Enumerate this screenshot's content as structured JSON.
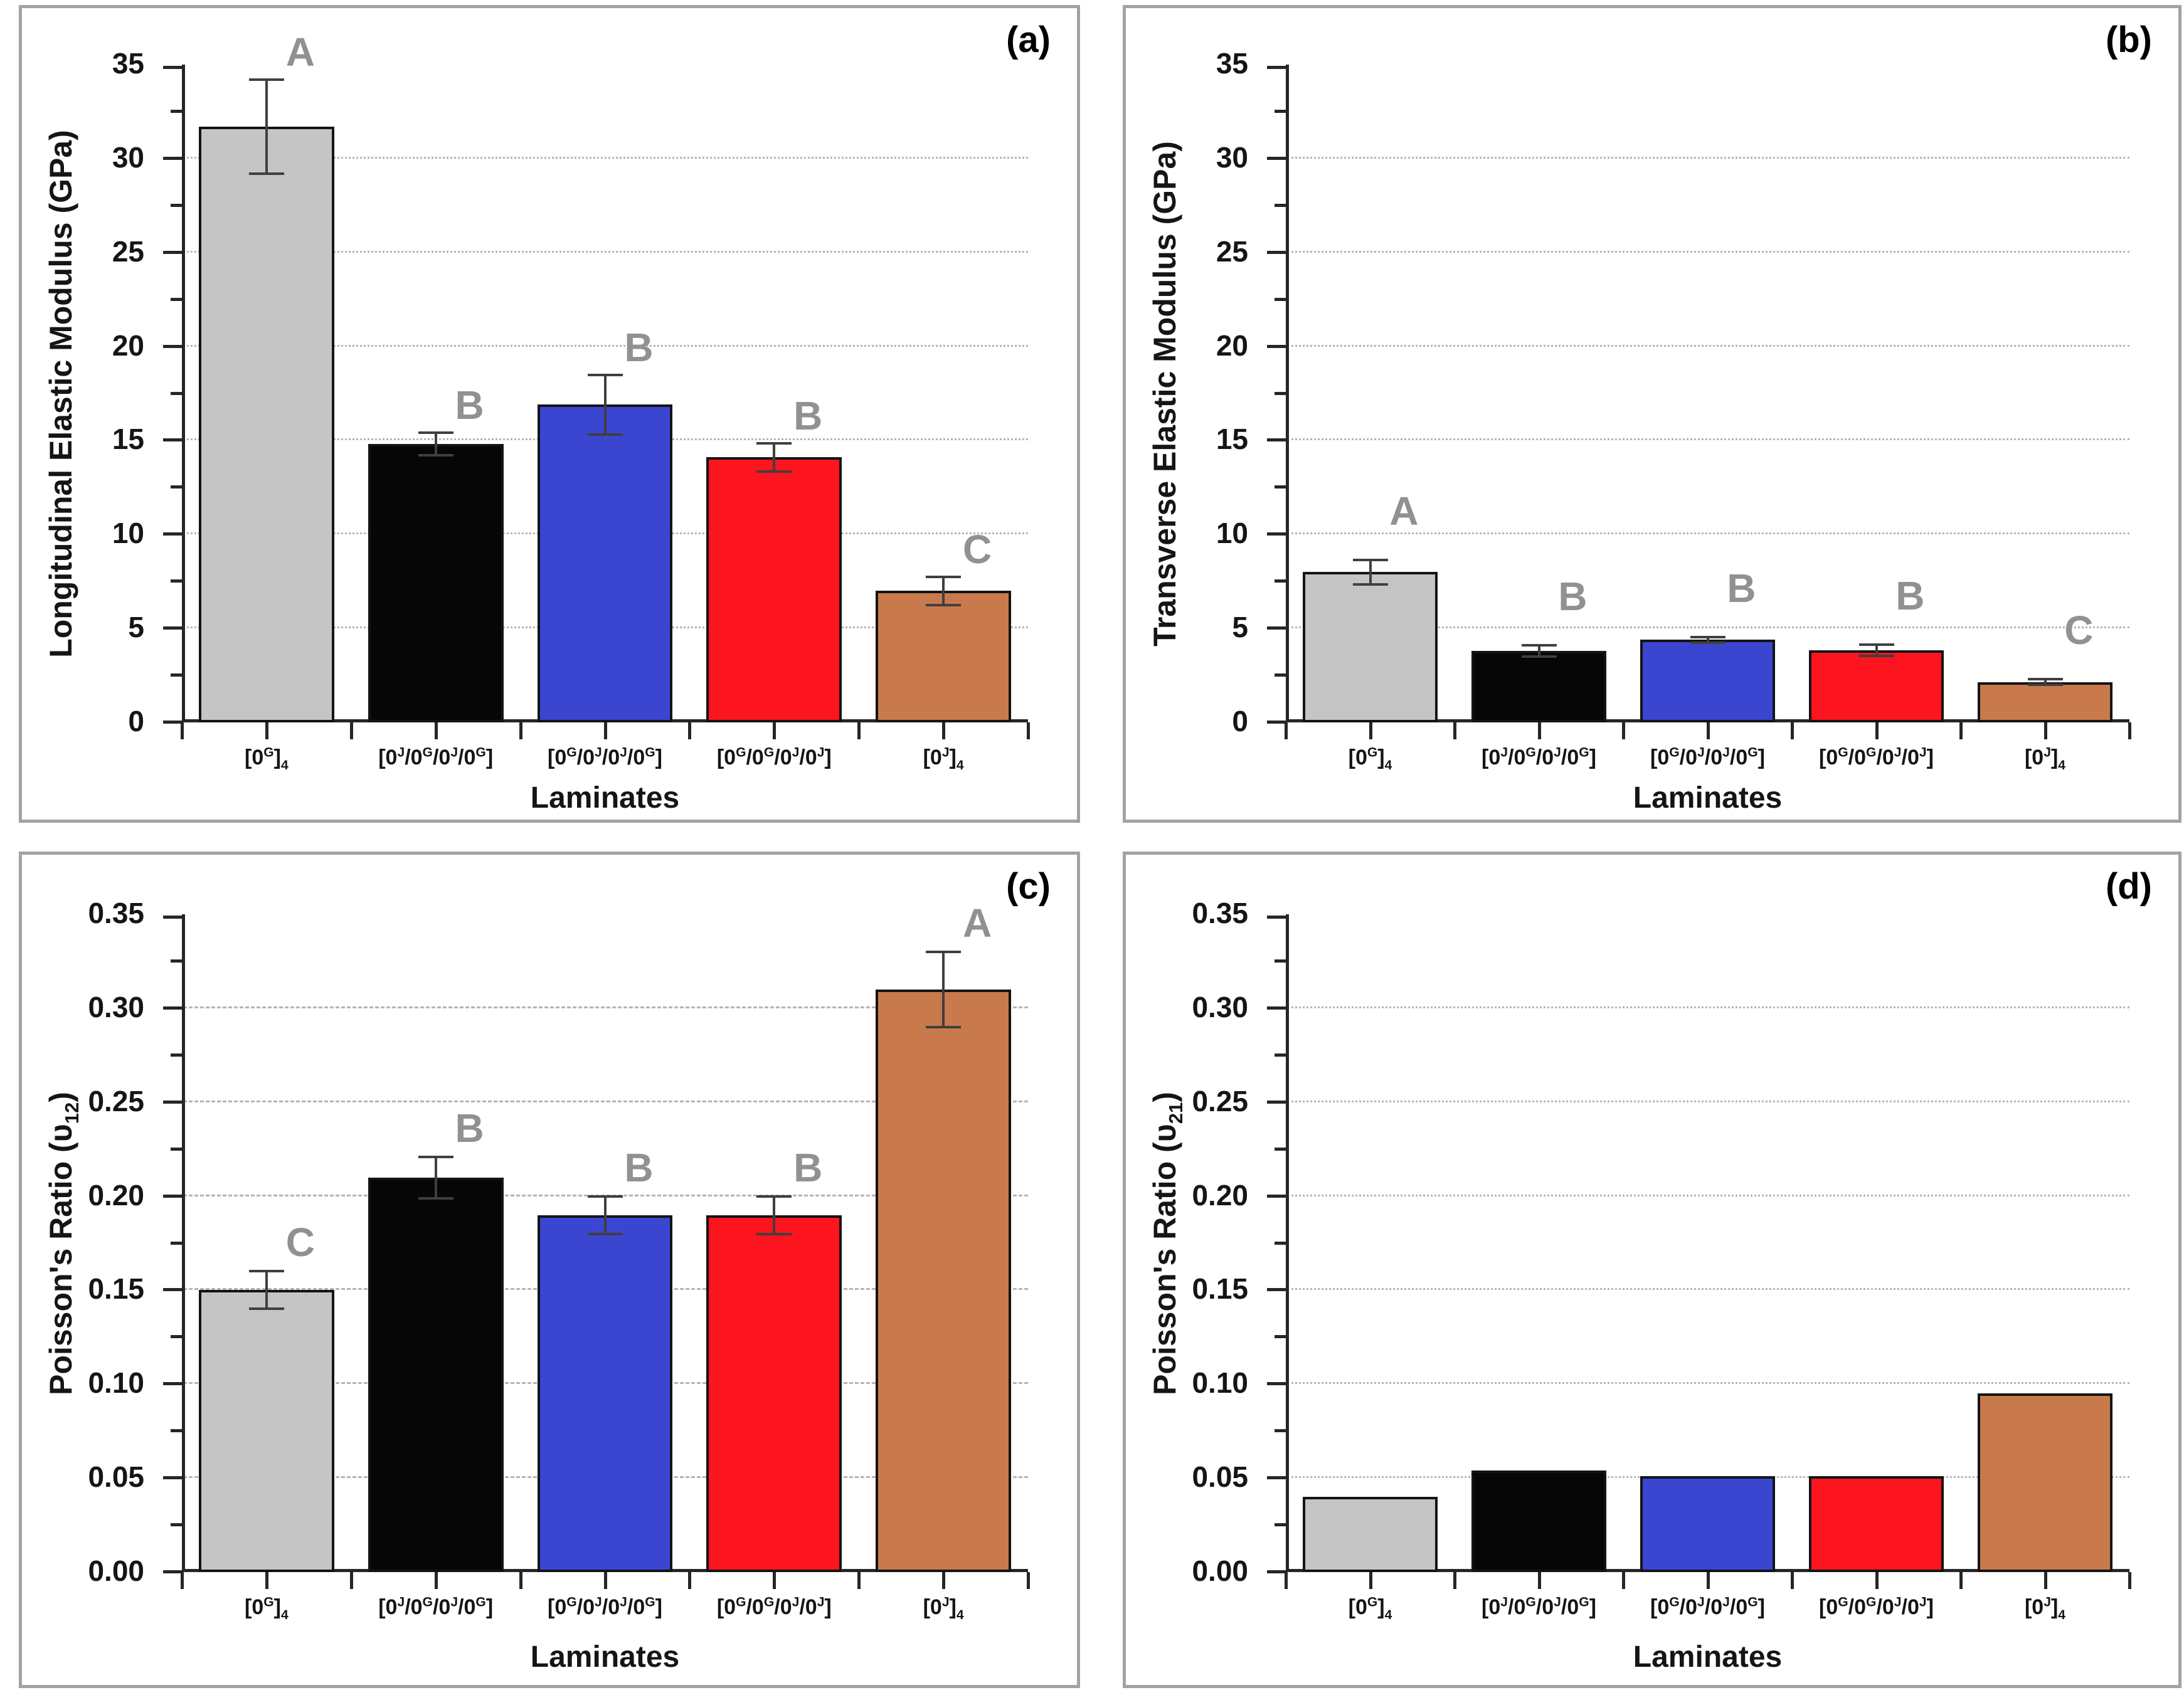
{
  "figure": {
    "background": "#ffffff",
    "panel_border_color": "#a2a2a2",
    "axis_color": "#262626",
    "gridline_color": "#b5b5b5",
    "error_bar_color": "#3f3f3f",
    "stat_letter_color": "#919191",
    "bar_colors": [
      "#c5c5c5",
      "#060606",
      "#3a46d0",
      "#fc141f",
      "#c87a4c"
    ]
  },
  "chart_data": [
    {
      "type": "bar",
      "panel_label": "(a)",
      "ylabel": "Longitudinal Elastic Modulus (GPa)",
      "xlabel": "Laminates",
      "ylim": [
        0,
        35
      ],
      "yticks": [
        0,
        5,
        10,
        15,
        20,
        25,
        30,
        35
      ],
      "ytick_labels": [
        "0",
        "5",
        "10",
        "15",
        "20",
        "25",
        "30",
        "35"
      ],
      "gridlines": [
        5,
        10,
        15,
        20,
        25,
        30
      ],
      "grid_style": "dotted",
      "legend": "none",
      "categories": [
        "[0^{G}]_{4}",
        "[0^{J}/0^{G}/0^{J}/0^{G}]",
        "[0^{G}/0^{J}/0^{J}/0^{G}]",
        "[0^{G}/0^{G}/0^{J}/0^{J}]",
        "[0^{J}]_{4}"
      ],
      "values": [
        31.7,
        14.8,
        16.9,
        14.1,
        7.0
      ],
      "errors": [
        2.5,
        0.6,
        1.6,
        0.75,
        0.75
      ],
      "letters": [
        "A",
        "B",
        "B",
        "B",
        "C"
      ],
      "bar_colors": [
        "#c5c5c5",
        "#060606",
        "#3a46d0",
        "#fc141f",
        "#c87a4c"
      ]
    },
    {
      "type": "bar",
      "panel_label": "(b)",
      "ylabel": "Transverse  Elastic Modulus (GPa)",
      "xlabel": "Laminates",
      "ylim": [
        0,
        35
      ],
      "yticks": [
        0,
        5,
        10,
        15,
        20,
        25,
        30,
        35
      ],
      "ytick_labels": [
        "0",
        "5",
        "10",
        "15",
        "20",
        "25",
        "30",
        "35"
      ],
      "gridlines": [
        5,
        10,
        15,
        20,
        25,
        30
      ],
      "grid_style": "dotted",
      "legend": "none",
      "categories": [
        "[0^{G}]_{4}",
        "[0^{J}/0^{G}/0^{J}/0^{G}]",
        "[0^{G}/0^{J}/0^{J}/0^{G}]",
        "[0^{G}/0^{G}/0^{J}/0^{J}]",
        "[0^{J}]_{4}"
      ],
      "values": [
        8.0,
        3.8,
        4.4,
        3.85,
        2.15
      ],
      "errors": [
        0.65,
        0.3,
        0.15,
        0.3,
        0.15
      ],
      "letters": [
        "A",
        "B",
        "B",
        "B",
        "C"
      ],
      "bar_colors": [
        "#c5c5c5",
        "#060606",
        "#3a46d0",
        "#fc141f",
        "#c87a4c"
      ]
    },
    {
      "type": "bar",
      "panel_label": "(c)",
      "ylabel": "Poisson's Ratio (υ_{12})",
      "xlabel": "Laminates",
      "ylim": [
        0,
        0.35
      ],
      "yticks": [
        0,
        0.05,
        0.1,
        0.15,
        0.2,
        0.25,
        0.3,
        0.35
      ],
      "ytick_labels": [
        "0.00",
        "0.05",
        "0.10",
        "0.15",
        "0.20",
        "0.25",
        "0.30",
        "0.35"
      ],
      "gridlines": [
        0.05,
        0.1,
        0.15,
        0.2,
        0.25,
        0.3
      ],
      "grid_style": "dashed",
      "legend": "none",
      "categories": [
        "[0^{G}]_{4}",
        "[0^{J}/0^{G}/0^{J}/0^{G}]",
        "[0^{G}/0^{J}/0^{J}/0^{G}]",
        "[0^{G}/0^{G}/0^{J}/0^{J}]",
        "[0^{J}]_{4}"
      ],
      "values": [
        0.15,
        0.21,
        0.19,
        0.19,
        0.31
      ],
      "errors": [
        0.01,
        0.011,
        0.01,
        0.01,
        0.02
      ],
      "letters": [
        "C",
        "B",
        "B",
        "B",
        "A"
      ],
      "bar_colors": [
        "#c5c5c5",
        "#060606",
        "#3a46d0",
        "#fc141f",
        "#c87a4c"
      ]
    },
    {
      "type": "bar",
      "panel_label": "(d)",
      "ylabel": "Poisson's Ratio (υ_{21})",
      "xlabel": "Laminates",
      "ylim": [
        0,
        0.35
      ],
      "yticks": [
        0,
        0.05,
        0.1,
        0.15,
        0.2,
        0.25,
        0.3,
        0.35
      ],
      "ytick_labels": [
        "0.00",
        "0.05",
        "0.10",
        "0.15",
        "0.20",
        "0.25",
        "0.30",
        "0.35"
      ],
      "gridlines": [
        0.05,
        0.1,
        0.15,
        0.2,
        0.25,
        0.3
      ],
      "grid_style": "dotted",
      "legend": "none",
      "categories": [
        "[0^{G}]_{4}",
        "[0^{J}/0^{G}/0^{J}/0^{G}]",
        "[0^{G}/0^{J}/0^{J}/0^{G}]",
        "[0^{G}/0^{G}/0^{J}/0^{J}]",
        "[0^{J}]_{4}"
      ],
      "values": [
        0.04,
        0.054,
        0.051,
        0.051,
        0.095
      ],
      "errors": [
        0,
        0,
        0,
        0,
        0
      ],
      "letters": null,
      "bar_colors": [
        "#c5c5c5",
        "#060606",
        "#3a46d0",
        "#fc141f",
        "#c87a4c"
      ]
    }
  ]
}
